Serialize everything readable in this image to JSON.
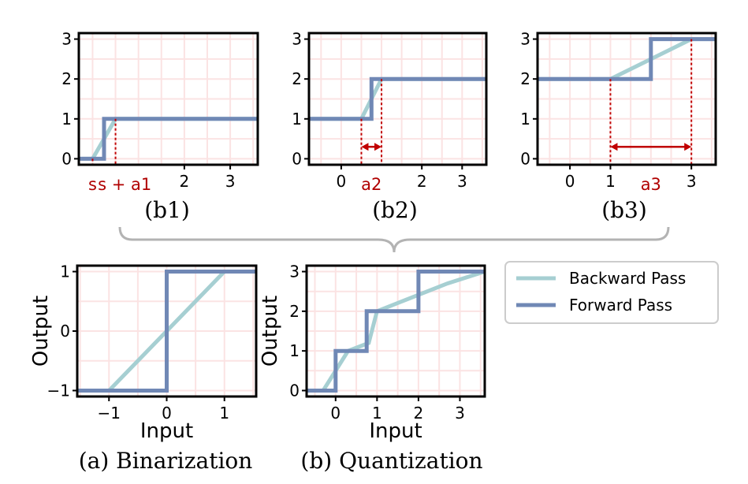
{
  "colors": {
    "backward": "#a6cfd2",
    "forward": "#7088b5",
    "annotation": "#c00000",
    "grid": "#fbe3e3"
  },
  "legend": {
    "backward": "Backward Pass",
    "forward": "Forward Pass"
  },
  "captions": {
    "b1": "(b1)",
    "b2": "(b2)",
    "b3": "(b3)",
    "a": "(a) Binarization",
    "b": "(b) Quantization"
  },
  "chart_data": [
    {
      "id": "b1",
      "type": "line",
      "title": "(b1)",
      "xlim": [
        -0.3,
        3.6
      ],
      "ylim": [
        -0.15,
        3.15
      ],
      "xticks": [
        2,
        3
      ],
      "yticks": [
        0,
        1,
        2,
        3
      ],
      "series": [
        {
          "name": "Backward Pass",
          "role": "backward",
          "x": [
            -0.3,
            0,
            0.5,
            3.6
          ],
          "y": [
            0,
            0,
            1,
            1
          ]
        },
        {
          "name": "Forward Pass",
          "role": "forward",
          "x": [
            -0.3,
            0.25,
            0.25,
            3.6
          ],
          "y": [
            0,
            0,
            1,
            1
          ]
        }
      ],
      "markers": [
        {
          "x": 0,
          "y": 0
        },
        {
          "x": 0.5,
          "y": 1
        }
      ],
      "annotations": [
        {
          "text": "s",
          "x": 0
        },
        {
          "text": "s + a1",
          "x": 0.7
        }
      ]
    },
    {
      "id": "b2",
      "type": "line",
      "title": "(b2)",
      "xlim": [
        -0.8,
        3.6
      ],
      "ylim": [
        -0.15,
        3.15
      ],
      "xticks": [
        0,
        2,
        3
      ],
      "yticks": [
        0,
        1,
        2,
        3
      ],
      "series": [
        {
          "name": "Backward Pass",
          "role": "backward",
          "x": [
            -0.8,
            0.5,
            1,
            3.6
          ],
          "y": [
            1,
            1,
            2,
            2
          ]
        },
        {
          "name": "Forward Pass",
          "role": "forward",
          "x": [
            -0.8,
            0.75,
            0.75,
            3.6
          ],
          "y": [
            1,
            1,
            2,
            2
          ]
        }
      ],
      "markers": [
        {
          "x": 0.5,
          "y": 1
        },
        {
          "x": 1,
          "y": 2
        }
      ],
      "range_arrow": {
        "from": 0.5,
        "to": 1,
        "y": 0.3,
        "label": "a2"
      }
    },
    {
      "id": "b3",
      "type": "line",
      "title": "(b3)",
      "xlim": [
        -0.8,
        3.6
      ],
      "ylim": [
        -0.15,
        3.15
      ],
      "xticks": [
        0,
        1,
        3
      ],
      "yticks": [
        0,
        1,
        2,
        3
      ],
      "series": [
        {
          "name": "Backward Pass",
          "role": "backward",
          "x": [
            -0.8,
            1,
            3,
            3.6
          ],
          "y": [
            2,
            2,
            3,
            3
          ]
        },
        {
          "name": "Forward Pass",
          "role": "forward",
          "x": [
            -0.8,
            2,
            2,
            3.6
          ],
          "y": [
            2,
            2,
            3,
            3
          ]
        }
      ],
      "markers": [
        {
          "x": 1,
          "y": 2
        },
        {
          "x": 3,
          "y": 3
        }
      ],
      "range_arrow": {
        "from": 1,
        "to": 3,
        "y": 0.3,
        "label": "a3"
      }
    },
    {
      "id": "a",
      "type": "line",
      "title": "(a) Binarization",
      "xlabel": "Input",
      "ylabel": "Output",
      "xlim": [
        -1.55,
        1.55
      ],
      "ylim": [
        -1.1,
        1.1
      ],
      "xticks": [
        -1,
        0,
        1
      ],
      "xticklabels": [
        "−1",
        "0",
        "1"
      ],
      "yticks": [
        -1,
        0,
        1
      ],
      "yticklabels": [
        "−1",
        "0",
        "1"
      ],
      "series": [
        {
          "name": "Backward Pass",
          "role": "backward",
          "x": [
            -1.55,
            -1,
            1,
            1.55
          ],
          "y": [
            -1,
            -1,
            1,
            1
          ]
        },
        {
          "name": "Forward Pass",
          "role": "forward",
          "x": [
            -1.55,
            0,
            0,
            1.55
          ],
          "y": [
            -1,
            -1,
            1,
            1
          ]
        }
      ]
    },
    {
      "id": "b",
      "type": "line",
      "title": "(b) Quantization",
      "xlabel": "Input",
      "ylabel": "Output",
      "xlim": [
        -0.7,
        3.6
      ],
      "ylim": [
        -0.15,
        3.15
      ],
      "xticks": [
        0,
        1,
        2,
        3
      ],
      "yticks": [
        0,
        1,
        2,
        3
      ],
      "series": [
        {
          "name": "Backward Pass",
          "role": "backward",
          "x": [
            -0.7,
            -0.3,
            0.3,
            0.8,
            1,
            2.7,
            3.6
          ],
          "y": [
            0,
            0,
            1,
            1.2,
            2,
            2.7,
            3
          ]
        },
        {
          "name": "Forward Pass",
          "role": "forward",
          "x": [
            -0.7,
            0,
            0,
            0.75,
            0.75,
            2,
            2,
            3.6
          ],
          "y": [
            0,
            0,
            1,
            1,
            2,
            2,
            3,
            3
          ]
        }
      ]
    }
  ]
}
